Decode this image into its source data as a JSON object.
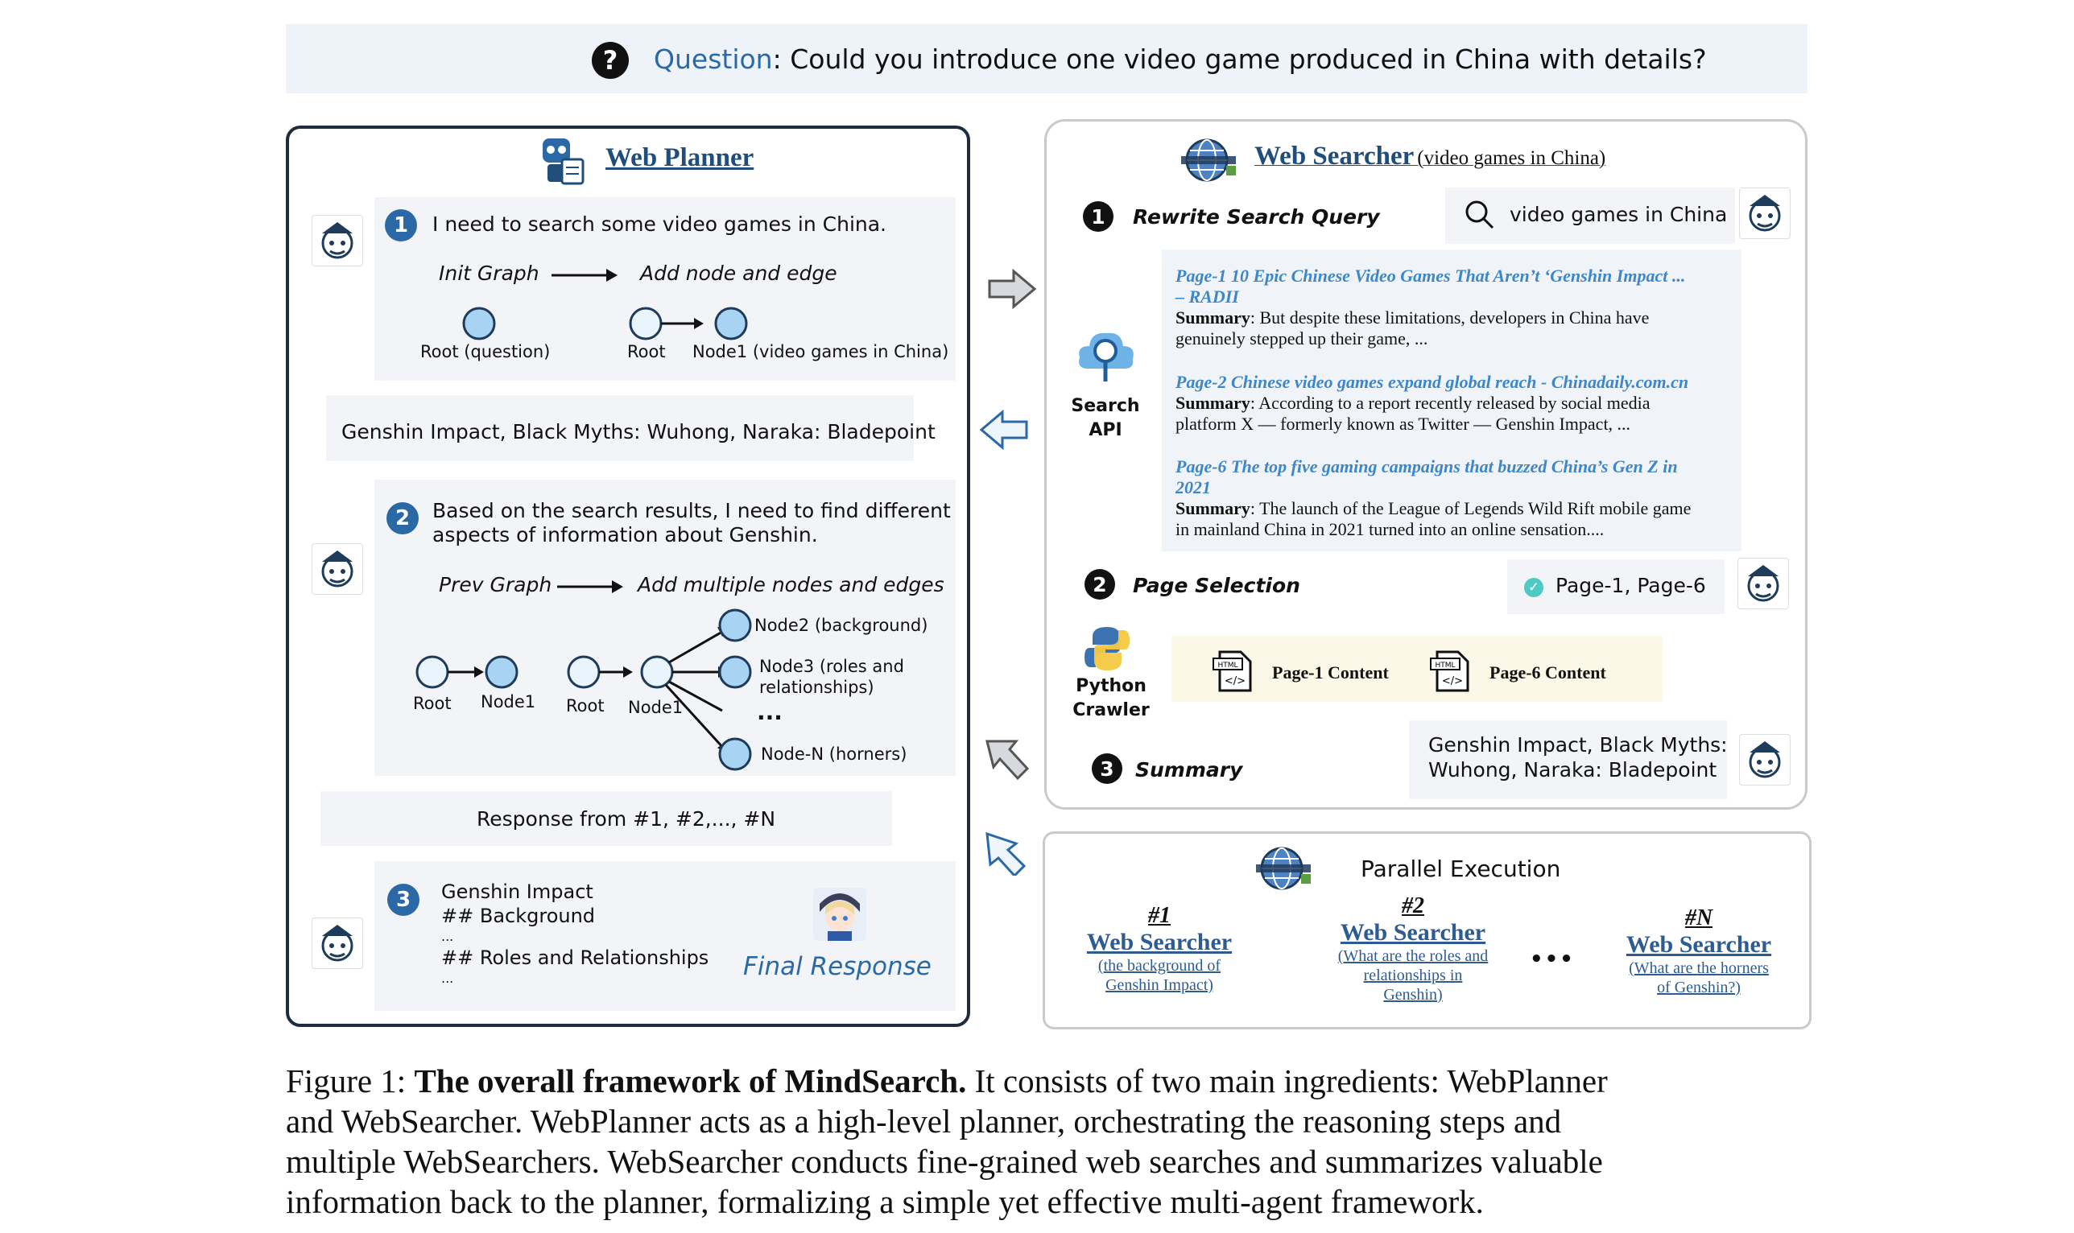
{
  "question": {
    "label": "Question",
    "text": ": Could you introduce one video game produced in China with details?"
  },
  "planner": {
    "title": "Web Planner",
    "step1": {
      "num": "1",
      "text": "I need to search some video games in China.",
      "from": "Init Graph",
      "to": "Add node and edge",
      "root_q": "Root (question)",
      "root": "Root",
      "node1": "Node1 (video games in China)"
    },
    "result1": "Genshin Impact, Black Myths: Wuhong, Naraka: Bladepoint",
    "step2": {
      "num": "2",
      "text1": "Based on the search results, I need to find different",
      "text2": "aspects of information about Genshin.",
      "from": "Prev Graph",
      "to": "Add multiple nodes and edges",
      "root_a": "Root",
      "node1_a": "Node1",
      "root_b": "Root",
      "node1_b": "Node1",
      "node2": "Node2 (background)",
      "node3a": "Node3 (roles and",
      "node3b": "relationships)",
      "dots": "...",
      "nodeN": "Node-N (horners)"
    },
    "response": "Response from #1, #2,..., #N",
    "step3": {
      "num": "3",
      "l1": "Genshin Impact",
      "l2": "## Background",
      "l3": "...",
      "l4": "## Roles and Relationships",
      "l5": "...",
      "final": "Final Response"
    }
  },
  "searcher": {
    "title": "Web Searcher",
    "subtitle": "(video games in China)",
    "step1": {
      "num": "1",
      "label": "Rewrite Search Query",
      "query": "video games in China"
    },
    "search_api": [
      "Search",
      "API"
    ],
    "results": [
      {
        "t1": "Page-1 10 Epic Chinese Video Games That Aren’t ‘Genshin Impact ...",
        "t2": "– RADII",
        "s_label": "Summary",
        "s1": ": But despite these limitations, developers in China have",
        "s2": "genuinely stepped up their game, ..."
      },
      {
        "t1": "Page-2 Chinese video games expand global reach - Chinadaily.com.cn",
        "t2": "",
        "s_label": "Summary",
        "s1": ": According to a report recently released by social media",
        "s2": "platform X — formerly known as Twitter — Genshin Impact, ..."
      },
      {
        "t1": "Page-6 The top five gaming campaigns that buzzed China’s Gen Z in",
        "t2": "2021",
        "s_label": "Summary",
        "s1": ": The launch of the League of Legends Wild Rift mobile game",
        "s2": "in mainland China in 2021 turned into an online sensation...."
      }
    ],
    "step2": {
      "num": "2",
      "label": "Page Selection",
      "selected": "Page-1, Page-6"
    },
    "crawler": [
      "Python",
      "Crawler"
    ],
    "content": [
      "Page-1 Content",
      "Page-6 Content"
    ],
    "html_tag": "HTML",
    "step3": {
      "num": "3",
      "label": "Summary",
      "text1": "Genshin Impact, Black Myths:",
      "text2": "Wuhong, Naraka: Bladepoint"
    }
  },
  "parallel": {
    "title": "Parallel Execution",
    "items": [
      {
        "num": "#1",
        "name": "Web Searcher",
        "q": [
          "(the background of",
          "Genshin Impact)"
        ]
      },
      {
        "num": "#2",
        "name": "Web Searcher",
        "q": [
          "(What are the roles and",
          "relationships in",
          "Genshin)"
        ]
      },
      {
        "num": "#N",
        "name": "Web Searcher",
        "q": [
          "(What are the horners",
          "of Genshin?)"
        ]
      }
    ],
    "dots": "•••"
  },
  "caption": {
    "prefix": "Figure 1: ",
    "bold": "The overall framework of MindSearch.",
    "l1": " It consists of two main ingredients: WebPlanner",
    "l2": "and WebSearcher. WebPlanner acts as a high-level planner, orchestrating the reasoning steps and",
    "l3": "multiple WebSearchers. WebSearcher conducts fine-grained web searches and summarizes valuable",
    "l4": "information back to the planner, formalizing a simple yet effective multi-agent framework."
  },
  "colors": {
    "accent": "#2a69a5",
    "node": "#a9d3f2",
    "link": "#3d86c8"
  }
}
